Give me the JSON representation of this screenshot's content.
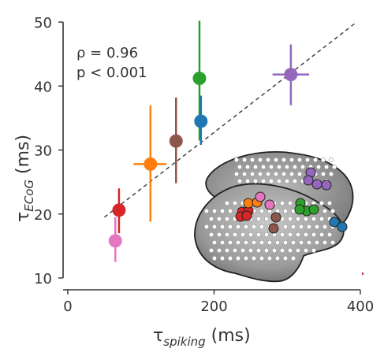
{
  "chart_data": {
    "type": "scatter",
    "xlim": [
      0,
      400
    ],
    "ylim": [
      10,
      50
    ],
    "xticks": [
      0,
      200,
      400
    ],
    "yticks": [
      10,
      20,
      30,
      40,
      50
    ],
    "xlabel": {
      "main": "τ",
      "sub": "spiking",
      "unit": " (ms)"
    },
    "ylabel": {
      "main": "τ",
      "sub": "ECoG",
      "unit": " (ms)"
    },
    "annotations": {
      "rho": "ρ = 0.96",
      "p": "p < 0.001"
    },
    "fit_line": {
      "x": [
        50,
        395
      ],
      "y": [
        19.5,
        50
      ],
      "style": "dashed"
    },
    "grid": false,
    "inset": "brain surface rendering with colored electrode positions",
    "points": [
      {
        "color": "#e377c2",
        "x": 65,
        "y": 15.8,
        "xerr": [
          65,
          65
        ],
        "yerr": [
          12.5,
          19.5
        ]
      },
      {
        "color": "#d62728",
        "x": 70,
        "y": 20.6,
        "xerr": [
          70,
          70
        ],
        "yerr": [
          17.0,
          24.0
        ]
      },
      {
        "color": "#ff7f0e",
        "x": 113,
        "y": 27.8,
        "xerr": [
          90,
          135
        ],
        "yerr": [
          18.8,
          37.0
        ]
      },
      {
        "color": "#8c564b",
        "x": 148,
        "y": 31.4,
        "xerr": [
          148,
          148
        ],
        "yerr": [
          24.8,
          38.2
        ]
      },
      {
        "color": "#2ca02c",
        "x": 180,
        "y": 41.2,
        "xerr": [
          180,
          180
        ],
        "yerr": [
          31.5,
          50.2
        ]
      },
      {
        "color": "#1f77b4",
        "x": 182,
        "y": 34.5,
        "xerr": [
          182,
          182
        ],
        "yerr": [
          30.8,
          38.5
        ]
      },
      {
        "color": "#9467bd",
        "x": 305,
        "y": 41.8,
        "xerr": [
          280,
          330
        ],
        "yerr": [
          37.0,
          46.5
        ]
      }
    ]
  }
}
